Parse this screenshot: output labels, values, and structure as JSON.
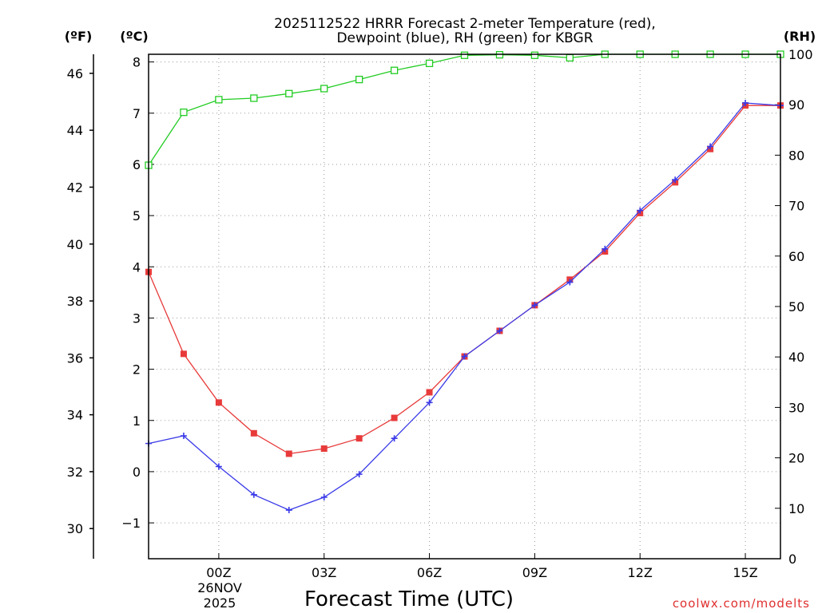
{
  "chart_data": {
    "type": "line",
    "title": "2025112522 HRRR Forecast 2-meter Temperature (red),",
    "subtitle": "Dewpoint (blue), RH (green) for KBGR",
    "xlabel": "Forecast Time (UTC)",
    "unit_fahrenheit": "(ºF)",
    "unit_celsius": "(ºC)",
    "unit_rh": "(RH)",
    "watermark": "coolwx.com/modelts",
    "x": [
      22,
      23,
      24,
      25,
      26,
      27,
      28,
      29,
      30,
      31,
      32,
      33,
      34,
      35,
      36,
      37,
      38,
      39,
      40
    ],
    "xlim": [
      22,
      40
    ],
    "x_ticks": [
      {
        "x": 24,
        "label": "00Z"
      },
      {
        "x": 27,
        "label": "03Z"
      },
      {
        "x": 30,
        "label": "06Z"
      },
      {
        "x": 33,
        "label": "09Z"
      },
      {
        "x": 36,
        "label": "12Z"
      },
      {
        "x": 39,
        "label": "15Z"
      }
    ],
    "date_label_line1": "26NOV",
    "date_label_line2": "2025",
    "date_label_x": 24,
    "celsius_lim": [
      -1.7,
      8.15
    ],
    "celsius_ticks": [
      -1,
      0,
      1,
      2,
      3,
      4,
      5,
      6,
      7,
      8
    ],
    "fahrenheit_ticks": [
      30,
      32,
      34,
      36,
      38,
      40,
      42,
      44,
      46
    ],
    "rh_lim": [
      0,
      100
    ],
    "rh_ticks": [
      0,
      10,
      20,
      30,
      40,
      50,
      60,
      70,
      80,
      90,
      100
    ],
    "series": [
      {
        "name": "Temperature",
        "axis": "celsius",
        "color": "#e83a3a",
        "marker": "filled-square",
        "values": [
          3.9,
          2.3,
          1.35,
          0.75,
          0.35,
          0.45,
          0.65,
          1.05,
          1.55,
          2.25,
          2.75,
          3.25,
          3.75,
          4.3,
          5.05,
          5.65,
          6.3,
          7.15,
          7.15
        ]
      },
      {
        "name": "Dewpoint",
        "axis": "celsius",
        "color": "#3a3ae8",
        "marker": "plus",
        "values": [
          0.55,
          0.7,
          0.1,
          -0.45,
          -0.75,
          -0.5,
          -0.05,
          0.65,
          1.35,
          2.25,
          2.75,
          3.25,
          3.7,
          4.35,
          5.1,
          5.7,
          6.35,
          7.2,
          7.15
        ]
      },
      {
        "name": "Relative Humidity",
        "axis": "rh",
        "color": "#22cc22",
        "marker": "open-square",
        "values": [
          78,
          88.5,
          91,
          91.3,
          92.2,
          93.2,
          95,
          96.8,
          98.2,
          99.8,
          99.9,
          99.8,
          99.3,
          100,
          100,
          100,
          100,
          100,
          100
        ]
      }
    ]
  }
}
